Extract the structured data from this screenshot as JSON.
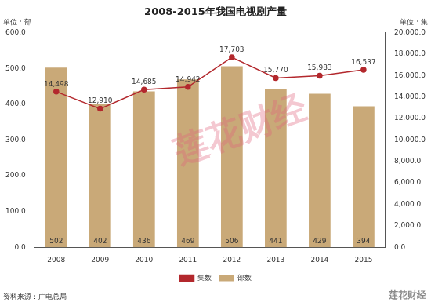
{
  "chart_data": {
    "type": "bar",
    "title": "2008-2015年我国电视剧产量",
    "ylabel": "单位：部",
    "y2label": "单位：集",
    "annotations": [
      "资料来源：广电总局",
      "莲花财经",
      "莲花财经"
    ],
    "categories": [
      "2008",
      "2009",
      "2010",
      "2011",
      "2012",
      "2013",
      "2014",
      "2015"
    ],
    "series": [
      {
        "name": "部数",
        "type": "bar",
        "color": "#c9a978",
        "values": [
          502,
          402,
          436,
          469,
          506,
          441,
          429,
          394
        ],
        "data_labels": true
      },
      {
        "name": "集数",
        "type": "line",
        "color": "#b3282d",
        "axis": "y2",
        "marker": "circle",
        "line_style": "solid",
        "values": [
          14498,
          12910,
          14685,
          14942,
          17703,
          15770,
          15983,
          16537
        ],
        "value_labels": [
          "14,498",
          "12,910",
          "14,685",
          "14,942",
          "17,703",
          "15,770",
          "15,983",
          "16,537"
        ],
        "data_labels": true
      }
    ],
    "ylim": [
      0,
      600
    ],
    "yticks": [
      {
        "value": 0,
        "label": "0.0"
      },
      {
        "value": 100,
        "label": "100.0"
      },
      {
        "value": 200,
        "label": "200.0"
      },
      {
        "value": 300,
        "label": "300.0"
      },
      {
        "value": 400,
        "label": "400.0"
      },
      {
        "value": 500,
        "label": "500.0"
      },
      {
        "value": 600,
        "label": "600.0"
      }
    ],
    "y2lim": [
      0,
      20000
    ],
    "y2ticks": [
      {
        "value": 0,
        "label": "0.0"
      },
      {
        "value": 2000,
        "label": "2,000.0"
      },
      {
        "value": 4000,
        "label": "4,000.0"
      },
      {
        "value": 6000,
        "label": "6,000.0"
      },
      {
        "value": 8000,
        "label": "8,000.0"
      },
      {
        "value": 10000,
        "label": "10,000.0"
      },
      {
        "value": 12000,
        "label": "12,000.0"
      },
      {
        "value": 14000,
        "label": "14,000.0"
      },
      {
        "value": 16000,
        "label": "16,000.0"
      },
      {
        "value": 18000,
        "label": "18,000.0"
      },
      {
        "value": 20000,
        "label": "20,000.0"
      }
    ],
    "grid": false,
    "legend": "bottom"
  }
}
